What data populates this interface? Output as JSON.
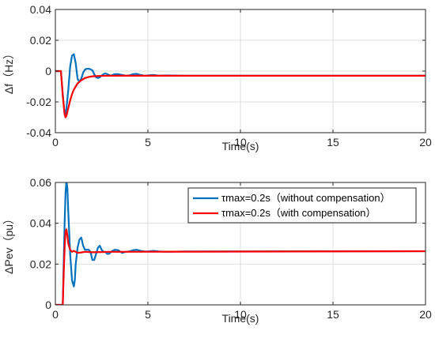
{
  "chart_data": [
    {
      "type": "line",
      "xlabel": "Time(s)",
      "ylabel": "Δf（Hz）",
      "xlim": [
        0,
        20
      ],
      "ylim": [
        -0.04,
        0.04
      ],
      "xticks": [
        "0",
        "5",
        "10",
        "15",
        "20"
      ],
      "yticks": [
        "-0.04",
        "-0.02",
        "0",
        "0.02",
        "0.04"
      ],
      "grid": true,
      "legend": null,
      "series": [
        {
          "color": "#0072BD",
          "x": [
            0,
            0.3,
            0.4,
            0.5,
            0.55,
            0.6,
            0.7,
            0.8,
            0.9,
            1.0,
            1.1,
            1.2,
            1.3,
            1.4,
            1.5,
            1.6,
            1.7,
            1.8,
            1.9,
            2.0,
            2.1,
            2.2,
            2.3,
            2.4,
            2.5,
            2.6,
            2.7,
            2.8,
            2.9,
            3.0,
            3.2,
            3.4,
            3.6,
            3.8,
            4.0,
            4.2,
            4.4,
            4.6,
            4.8,
            5.0,
            5.3,
            5.6,
            6.0,
            7.0,
            20
          ],
          "y": [
            0,
            0,
            -0.015,
            -0.028,
            -0.029,
            -0.024,
            -0.012,
            0.003,
            0.01,
            0.011,
            0.005,
            -0.005,
            -0.007,
            -0.005,
            -0.001,
            0.001,
            0.0015,
            0.0015,
            0.0012,
            0.0005,
            -0.002,
            -0.004,
            -0.0045,
            -0.004,
            -0.003,
            -0.002,
            -0.0015,
            -0.002,
            -0.0025,
            -0.003,
            -0.002,
            -0.002,
            -0.0025,
            -0.003,
            -0.0028,
            -0.002,
            -0.0018,
            -0.0025,
            -0.003,
            -0.0028,
            -0.0025,
            -0.003,
            -0.0028,
            -0.003,
            -0.003
          ]
        },
        {
          "color": "#FF0000",
          "x": [
            0,
            0.3,
            0.4,
            0.5,
            0.55,
            0.6,
            0.7,
            0.8,
            0.9,
            1.0,
            1.1,
            1.2,
            1.4,
            1.6,
            1.8,
            2.0,
            2.5,
            3.0,
            4.0,
            20
          ],
          "y": [
            0,
            0,
            -0.016,
            -0.028,
            -0.03,
            -0.029,
            -0.024,
            -0.019,
            -0.015,
            -0.012,
            -0.01,
            -0.008,
            -0.006,
            -0.0045,
            -0.0038,
            -0.0034,
            -0.0031,
            -0.003,
            -0.003,
            -0.003
          ]
        }
      ]
    },
    {
      "type": "line",
      "xlabel": "Time(s)",
      "ylabel": "ΔPev（pu）",
      "xlim": [
        0,
        20
      ],
      "ylim": [
        0,
        0.06
      ],
      "xticks": [
        "0",
        "5",
        "10",
        "15",
        "20"
      ],
      "yticks": [
        "0",
        "0.02",
        "0.04",
        "0.06"
      ],
      "grid": true,
      "legend": "top-right",
      "series": [
        {
          "name": "τmax=0.2s（without compensation）",
          "color": "#0072BD",
          "x": [
            0,
            0.4,
            0.45,
            0.5,
            0.55,
            0.6,
            0.65,
            0.7,
            0.8,
            0.9,
            1.0,
            1.05,
            1.1,
            1.2,
            1.3,
            1.4,
            1.5,
            1.6,
            1.7,
            1.8,
            1.9,
            2.0,
            2.1,
            2.2,
            2.3,
            2.4,
            2.5,
            2.6,
            2.7,
            2.8,
            2.9,
            3.0,
            3.2,
            3.4,
            3.6,
            3.8,
            4.0,
            4.2,
            4.4,
            4.6,
            4.8,
            5.0,
            5.3,
            5.6,
            6.0,
            7.0,
            20
          ],
          "y": [
            0,
            0,
            0.02,
            0.04,
            0.055,
            0.061,
            0.057,
            0.045,
            0.025,
            0.012,
            0.009,
            0.012,
            0.02,
            0.028,
            0.032,
            0.033,
            0.029,
            0.027,
            0.027,
            0.027,
            0.026,
            0.022,
            0.022,
            0.025,
            0.028,
            0.029,
            0.027,
            0.026,
            0.026,
            0.025,
            0.025,
            0.026,
            0.027,
            0.0268,
            0.0255,
            0.026,
            0.0262,
            0.0268,
            0.027,
            0.0265,
            0.0262,
            0.0262,
            0.0265,
            0.0262,
            0.026,
            0.0262,
            0.0263
          ]
        },
        {
          "name": "τmax=0.2s（with compensation）",
          "color": "#FF0000",
          "x": [
            0,
            0.4,
            0.45,
            0.5,
            0.55,
            0.6,
            0.65,
            0.7,
            0.8,
            0.9,
            1.0,
            1.1,
            1.2,
            1.4,
            1.6,
            2.0,
            3.0,
            20
          ],
          "y": [
            0,
            0,
            0.015,
            0.028,
            0.036,
            0.037,
            0.034,
            0.03,
            0.027,
            0.026,
            0.0265,
            0.026,
            0.0255,
            0.0257,
            0.026,
            0.0258,
            0.026,
            0.0263
          ]
        }
      ]
    }
  ]
}
